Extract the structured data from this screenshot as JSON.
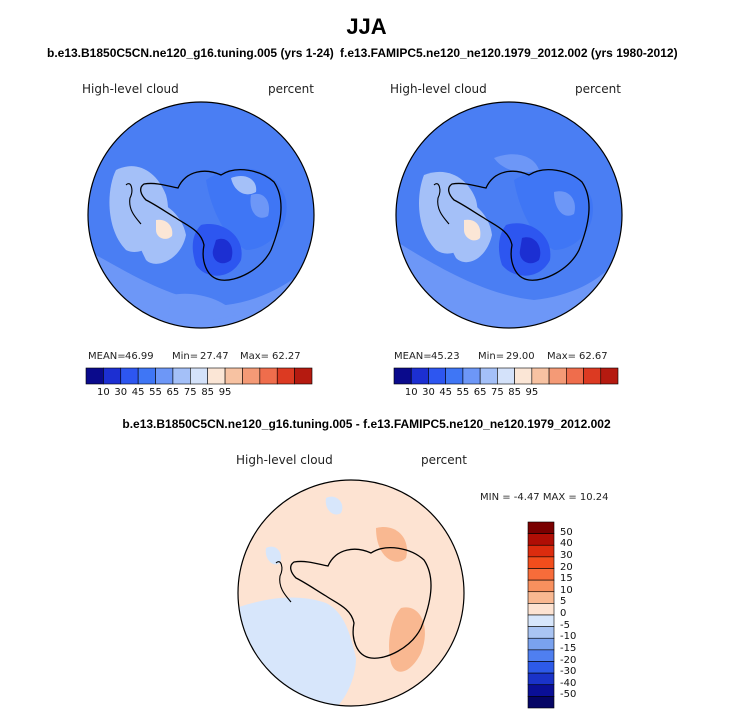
{
  "title": "JJA",
  "case1": "b.e13.B1850C5CN.ne120_g16.tuning.005 (yrs 1-24)",
  "case2": "f.e13.FAMIPC5.ne120_ne120.1979_2012.002 (yrs 1980-2012)",
  "diff_title": "b.e13.B1850C5CN.ne120_g16.tuning.005 - f.e13.FAMIPC5.ne120_ne120.1979_2012.002",
  "panels": [
    {
      "variable": "High-level cloud",
      "units": "percent",
      "mean_label": "MEAN=",
      "mean": "46.99",
      "min_label": "Min=",
      "min": "27.47",
      "max_label": "Max=",
      "max": "62.27"
    },
    {
      "variable": "High-level cloud",
      "units": "percent",
      "mean_label": "MEAN=",
      "mean": "45.23",
      "min_label": "Min=",
      "min": "29.00",
      "max_label": "Max=",
      "max": "62.67"
    }
  ],
  "diff_panel": {
    "variable": "High-level cloud",
    "units": "percent",
    "minmax": "MIN =   -4.47 MAX =   10.24"
  },
  "colorbar": {
    "ticks": [
      "10",
      "30",
      "45",
      "55",
      "65",
      "75",
      "85",
      "95"
    ],
    "colors": [
      "#0a0a8c",
      "#1c2fd2",
      "#2d56f0",
      "#3f76f5",
      "#6d97f7",
      "#a4c0f8",
      "#d4e2fa",
      "#fbe6d6",
      "#f7c2a2",
      "#f49a76",
      "#ef6d4c",
      "#dc3a22",
      "#b51a10",
      "#7a0a06"
    ]
  },
  "diff_colorbar": {
    "ticks": [
      "50",
      "40",
      "30",
      "20",
      "15",
      "10",
      "5",
      "0",
      "-5",
      "-10",
      "-15",
      "-20",
      "-30",
      "-40",
      "-50"
    ],
    "colors": [
      "#7a0000",
      "#b00e05",
      "#dc2c0e",
      "#f24d1c",
      "#f76c3a",
      "#f8905e",
      "#f9b891",
      "#fde3d2",
      "#d7e6fb",
      "#a9c4f3",
      "#7aa2ef",
      "#4f7ff0",
      "#2d5ae8",
      "#1a33c8",
      "#0a0f96",
      "#050565"
    ]
  }
}
